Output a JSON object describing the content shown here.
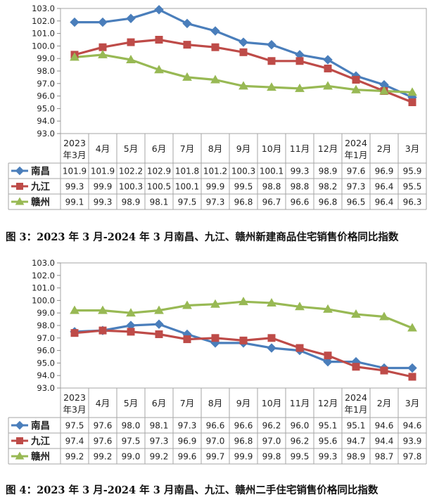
{
  "chart_data": [
    {
      "type": "line",
      "caption": "图 3：2023 年 3 月-2024 年 3 月南昌、九江、赣州新建商品住宅销售价格同比指数",
      "categories": [
        [
          "2023",
          "年3月"
        ],
        [
          "4月"
        ],
        [
          "5月"
        ],
        [
          "6月"
        ],
        [
          "7月"
        ],
        [
          "8月"
        ],
        [
          "9月"
        ],
        [
          "10月"
        ],
        [
          "11月"
        ],
        [
          "12月"
        ],
        [
          "2024",
          "年1月"
        ],
        [
          "2月"
        ],
        [
          "3月"
        ]
      ],
      "ylim": [
        93.0,
        103.0
      ],
      "yticks": [
        "93.0",
        "94.0",
        "95.0",
        "96.0",
        "97.0",
        "98.0",
        "99.0",
        "100.0",
        "101.0",
        "102.0",
        "103.0"
      ],
      "series": [
        {
          "name": "南昌",
          "color": "#4a7ebb",
          "marker": "diamond",
          "values": [
            101.9,
            101.9,
            102.2,
            102.9,
            101.8,
            101.2,
            100.3,
            100.1,
            99.3,
            98.9,
            97.6,
            96.9,
            95.9
          ],
          "labels": [
            "101.9",
            "101.9",
            "102.2",
            "102.9",
            "101.8",
            "101.2",
            "100.3",
            "100.1",
            "99.3",
            "98.9",
            "97.6",
            "96.9",
            "95.9"
          ]
        },
        {
          "name": "九江",
          "color": "#be4b48",
          "marker": "square",
          "values": [
            99.3,
            99.9,
            100.3,
            100.5,
            100.1,
            99.9,
            99.5,
            98.8,
            98.8,
            98.2,
            97.3,
            96.4,
            95.5
          ],
          "labels": [
            "99.3",
            "99.9",
            "100.3",
            "100.5",
            "100.1",
            "99.9",
            "99.5",
            "98.8",
            "98.8",
            "98.2",
            "97.3",
            "96.4",
            "95.5"
          ]
        },
        {
          "name": "赣州",
          "color": "#98b954",
          "marker": "triangle",
          "values": [
            99.1,
            99.3,
            98.9,
            98.1,
            97.5,
            97.3,
            96.8,
            96.7,
            96.6,
            96.8,
            96.5,
            96.4,
            96.3
          ],
          "labels": [
            "99.1",
            "99.3",
            "98.9",
            "98.1",
            "97.5",
            "97.3",
            "96.8",
            "96.7",
            "96.6",
            "96.8",
            "96.5",
            "96.4",
            "96.3"
          ]
        }
      ]
    },
    {
      "type": "line",
      "caption": "图 4：2023 年 3 月-2024 年 3 月南昌、九江、赣州二手住宅销售价格同比指数",
      "categories": [
        [
          "2023",
          "年3月"
        ],
        [
          "4月"
        ],
        [
          "5月"
        ],
        [
          "6月"
        ],
        [
          "7月"
        ],
        [
          "8月"
        ],
        [
          "9月"
        ],
        [
          "10月"
        ],
        [
          "11月"
        ],
        [
          "12月"
        ],
        [
          "2024",
          "年1月"
        ],
        [
          "2月"
        ],
        [
          "3月"
        ]
      ],
      "ylim": [
        93.0,
        103.0
      ],
      "yticks": [
        "93.0",
        "94.0",
        "95.0",
        "96.0",
        "97.0",
        "98.0",
        "99.0",
        "100.0",
        "101.0",
        "102.0",
        "103.0"
      ],
      "series": [
        {
          "name": "南昌",
          "color": "#4a7ebb",
          "marker": "diamond",
          "values": [
            97.5,
            97.6,
            98.0,
            98.1,
            97.3,
            96.6,
            96.6,
            96.2,
            96.0,
            95.1,
            95.1,
            94.6,
            94.6
          ],
          "labels": [
            "97.5",
            "97.6",
            "98.0",
            "98.1",
            "97.3",
            "96.6",
            "96.6",
            "96.2",
            "96.0",
            "95.1",
            "95.1",
            "94.6",
            "94.6"
          ]
        },
        {
          "name": "九江",
          "color": "#be4b48",
          "marker": "square",
          "values": [
            97.4,
            97.6,
            97.5,
            97.3,
            96.9,
            97.0,
            96.8,
            97.0,
            96.2,
            95.6,
            94.7,
            94.4,
            93.9
          ],
          "labels": [
            "97.4",
            "97.6",
            "97.5",
            "97.3",
            "96.9",
            "97.0",
            "96.8",
            "97.0",
            "96.2",
            "95.6",
            "94.7",
            "94.4",
            "93.9"
          ]
        },
        {
          "name": "赣州",
          "color": "#98b954",
          "marker": "triangle",
          "values": [
            99.2,
            99.2,
            99.0,
            99.2,
            99.6,
            99.7,
            99.9,
            99.8,
            99.5,
            99.3,
            98.9,
            98.7,
            97.8
          ],
          "labels": [
            "99.2",
            "99.2",
            "99.0",
            "99.2",
            "99.6",
            "99.7",
            "99.9",
            "99.8",
            "99.5",
            "99.3",
            "98.9",
            "98.7",
            "97.8"
          ]
        }
      ]
    }
  ]
}
